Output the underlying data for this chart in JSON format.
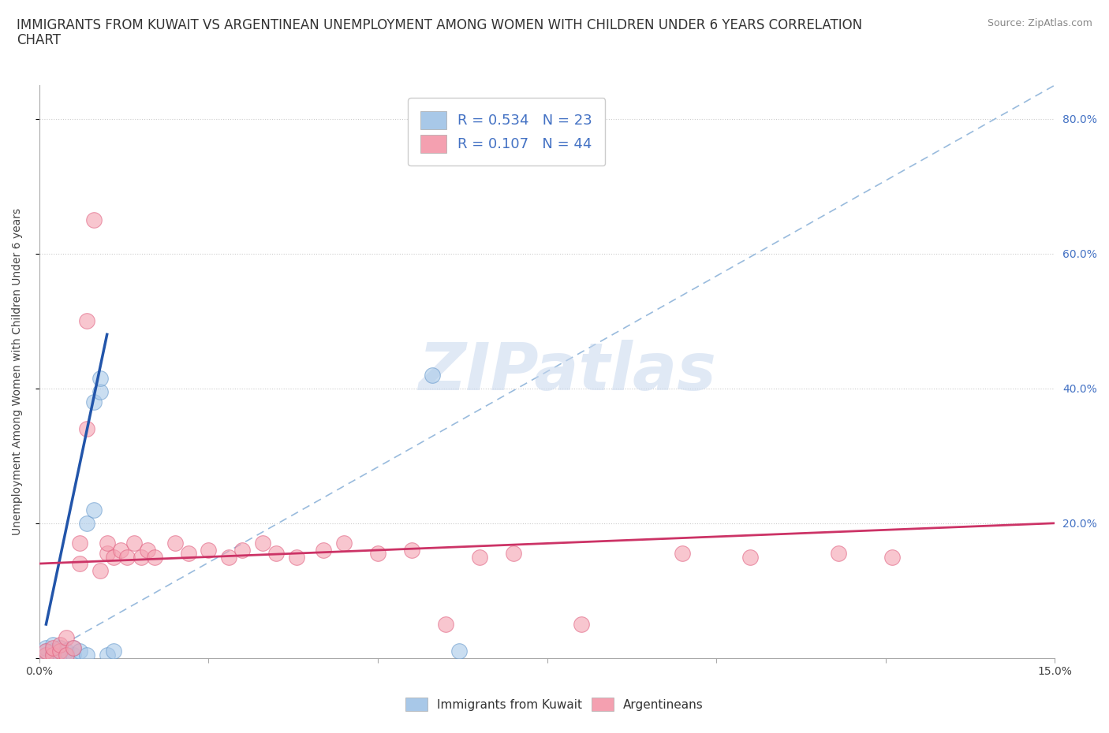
{
  "title_line1": "IMMIGRANTS FROM KUWAIT VS ARGENTINEAN UNEMPLOYMENT AMONG WOMEN WITH CHILDREN UNDER 6 YEARS CORRELATION",
  "title_line2": "CHART",
  "source": "Source: ZipAtlas.com",
  "ylabel": "Unemployment Among Women with Children Under 6 years",
  "xlim": [
    0.0,
    0.15
  ],
  "ylim": [
    0.0,
    0.85
  ],
  "xticks": [
    0.0,
    0.025,
    0.05,
    0.075,
    0.1,
    0.125,
    0.15
  ],
  "xtick_labels": [
    "0.0%",
    "",
    "",
    "",
    "",
    "",
    "15.0%"
  ],
  "ytick_positions_right": [
    0.0,
    0.2,
    0.4,
    0.6,
    0.8
  ],
  "ytick_labels_right": [
    "",
    "20.0%",
    "40.0%",
    "60.0%",
    "80.0%"
  ],
  "watermark_text": "ZIPatlas",
  "blue_color": "#a8c8e8",
  "pink_color": "#f4a0b0",
  "blue_edge": "#6699cc",
  "pink_edge": "#e06080",
  "blue_scatter": [
    [
      0.001,
      0.005
    ],
    [
      0.001,
      0.01
    ],
    [
      0.001,
      0.015
    ],
    [
      0.002,
      0.005
    ],
    [
      0.002,
      0.01
    ],
    [
      0.002,
      0.02
    ],
    [
      0.003,
      0.005
    ],
    [
      0.003,
      0.015
    ],
    [
      0.004,
      0.005
    ],
    [
      0.004,
      0.01
    ],
    [
      0.005,
      0.005
    ],
    [
      0.005,
      0.015
    ],
    [
      0.006,
      0.01
    ],
    [
      0.007,
      0.005
    ],
    [
      0.007,
      0.2
    ],
    [
      0.008,
      0.22
    ],
    [
      0.008,
      0.38
    ],
    [
      0.009,
      0.395
    ],
    [
      0.009,
      0.415
    ],
    [
      0.01,
      0.005
    ],
    [
      0.011,
      0.01
    ],
    [
      0.058,
      0.42
    ],
    [
      0.062,
      0.01
    ]
  ],
  "pink_scatter": [
    [
      0.001,
      0.005
    ],
    [
      0.001,
      0.01
    ],
    [
      0.002,
      0.005
    ],
    [
      0.002,
      0.015
    ],
    [
      0.003,
      0.01
    ],
    [
      0.003,
      0.02
    ],
    [
      0.004,
      0.005
    ],
    [
      0.004,
      0.03
    ],
    [
      0.005,
      0.015
    ],
    [
      0.006,
      0.14
    ],
    [
      0.006,
      0.17
    ],
    [
      0.007,
      0.34
    ],
    [
      0.007,
      0.5
    ],
    [
      0.008,
      0.65
    ],
    [
      0.009,
      0.13
    ],
    [
      0.01,
      0.155
    ],
    [
      0.01,
      0.17
    ],
    [
      0.011,
      0.15
    ],
    [
      0.012,
      0.16
    ],
    [
      0.013,
      0.15
    ],
    [
      0.014,
      0.17
    ],
    [
      0.015,
      0.15
    ],
    [
      0.016,
      0.16
    ],
    [
      0.017,
      0.15
    ],
    [
      0.02,
      0.17
    ],
    [
      0.022,
      0.155
    ],
    [
      0.025,
      0.16
    ],
    [
      0.028,
      0.15
    ],
    [
      0.03,
      0.16
    ],
    [
      0.033,
      0.17
    ],
    [
      0.035,
      0.155
    ],
    [
      0.038,
      0.15
    ],
    [
      0.042,
      0.16
    ],
    [
      0.045,
      0.17
    ],
    [
      0.05,
      0.155
    ],
    [
      0.055,
      0.16
    ],
    [
      0.06,
      0.05
    ],
    [
      0.065,
      0.15
    ],
    [
      0.07,
      0.155
    ],
    [
      0.08,
      0.05
    ],
    [
      0.095,
      0.155
    ],
    [
      0.105,
      0.15
    ],
    [
      0.118,
      0.155
    ],
    [
      0.126,
      0.15
    ]
  ],
  "blue_trend_x": [
    0.001,
    0.01
  ],
  "blue_trend_y": [
    0.05,
    0.48
  ],
  "pink_trend_x": [
    0.0,
    0.15
  ],
  "pink_trend_y": [
    0.14,
    0.2
  ],
  "ref_line_x": [
    0.0,
    0.15
  ],
  "ref_line_y": [
    0.0,
    0.85
  ],
  "title_fontsize": 12,
  "axis_label_fontsize": 10,
  "tick_fontsize": 10,
  "source_fontsize": 9
}
